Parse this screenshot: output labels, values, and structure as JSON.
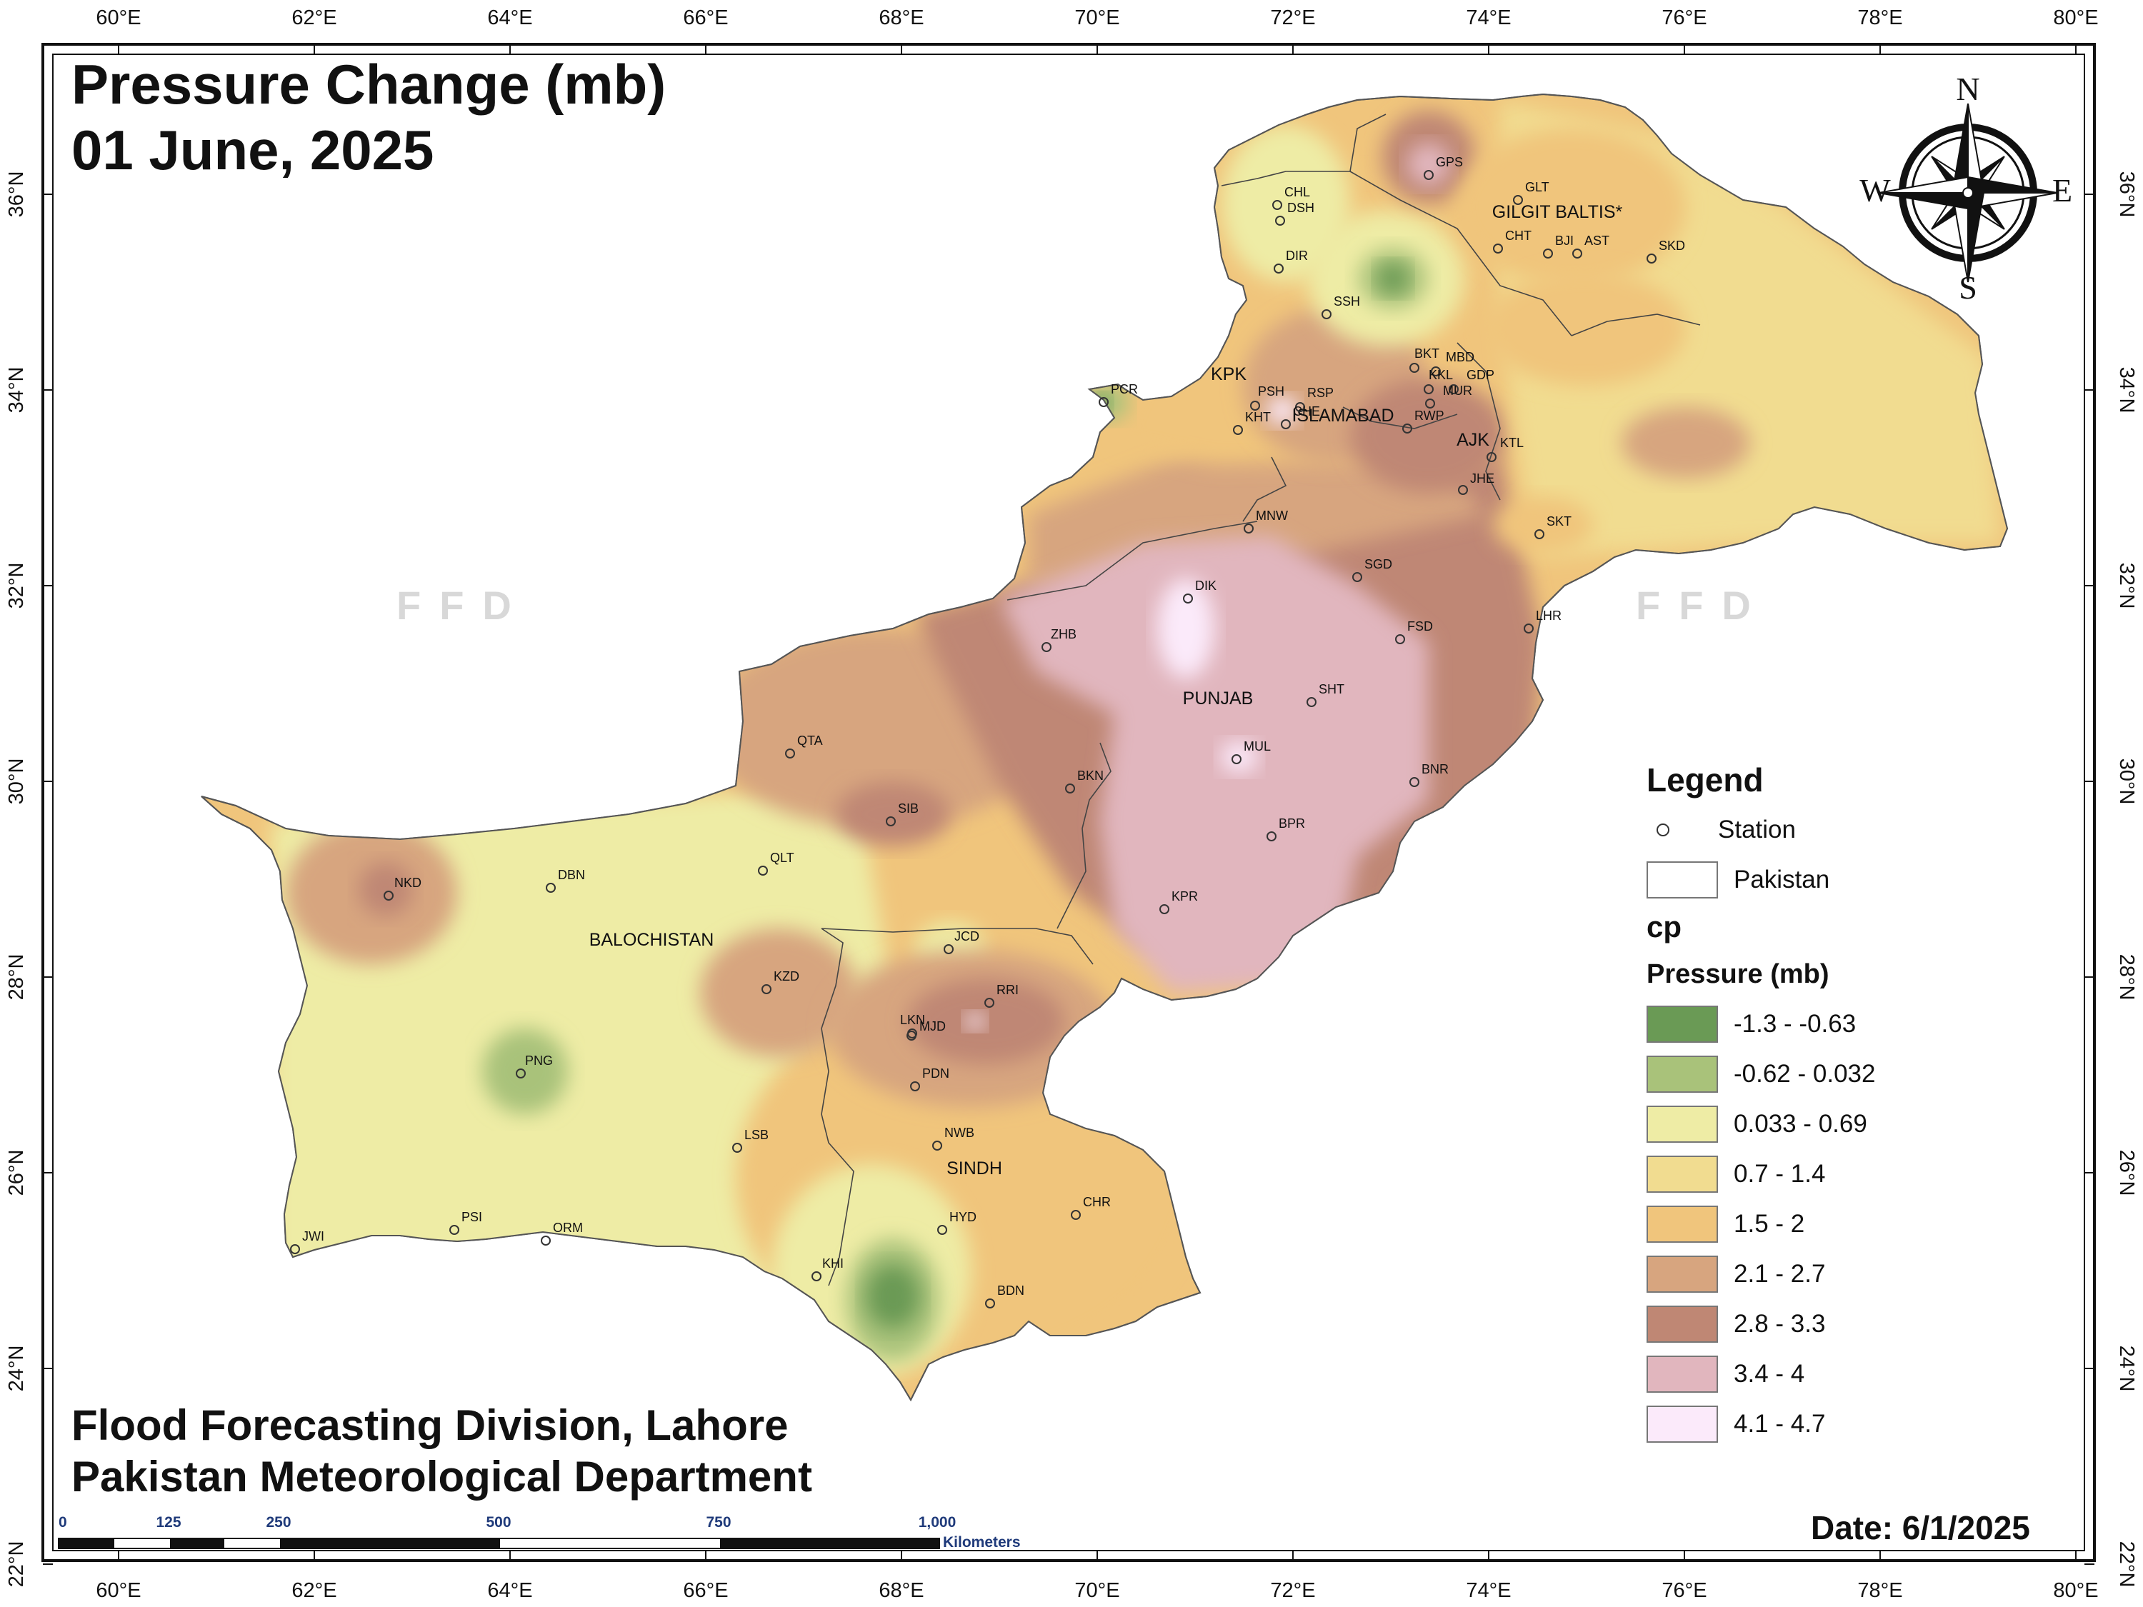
{
  "title": {
    "line1": "Pressure Change (mb)",
    "line2": "01 June, 2025"
  },
  "footer": {
    "line1": "Flood Forecasting Division, Lahore",
    "line2": "Pakistan Meteorological Department"
  },
  "date_label": "Date: 6/1/2025",
  "watermark": "FFD",
  "compass": {
    "n": "N",
    "s": "S",
    "e": "E",
    "w": "W"
  },
  "lon_ticks": [
    "60°E",
    "62°E",
    "64°E",
    "66°E",
    "68°E",
    "70°E",
    "72°E",
    "74°E",
    "76°E",
    "78°E",
    "80°E"
  ],
  "lat_ticks": [
    "36°N",
    "34°N",
    "32°N",
    "30°N",
    "28°N",
    "26°N",
    "24°N",
    "22°N"
  ],
  "legend": {
    "title": "Legend",
    "station_label": "Station",
    "pakistan_label": "Pakistan",
    "cp_label": "cp",
    "pressure_label": "Pressure (mb)",
    "classes": [
      {
        "label": "-1.3 - -0.63",
        "color": "#6a9a55"
      },
      {
        "label": "-0.62 - 0.032",
        "color": "#a9c27a"
      },
      {
        "label": "0.033 - 0.69",
        "color": "#eeeca5"
      },
      {
        "label": "0.7 - 1.4",
        "color": "#f1dc90"
      },
      {
        "label": "1.5 - 2",
        "color": "#f0c57c"
      },
      {
        "label": "2.1 - 2.7",
        "color": "#d7a57f"
      },
      {
        "label": "2.8 - 3.3",
        "color": "#bf8774"
      },
      {
        "label": "3.4 - 4",
        "color": "#e1b6be"
      },
      {
        "label": "4.1 - 4.7",
        "color": "#fbeafa"
      }
    ]
  },
  "regions": [
    "KPK",
    "ISLAMABAD",
    "GILGIT BALTIS*",
    "AJK",
    "PUNJAB",
    "BALOCHISTAN",
    "SINDH"
  ],
  "stations": [
    "GPS",
    "GLT",
    "CHL",
    "DSH",
    "CHT",
    "BJI",
    "AST",
    "SKD",
    "DIR",
    "SSH",
    "BKT",
    "MBD",
    "KKL",
    "GDP",
    "MUR",
    "PCR",
    "PSH",
    "RSP",
    "CHE",
    "KHT",
    "RWP",
    "KTL",
    "JHE",
    "SKT",
    "MNW",
    "SGD",
    "DIK",
    "ZHB",
    "LHR",
    "FSD",
    "SHT",
    "QTA",
    "MUL",
    "BKN",
    "BNR",
    "SIB",
    "BPR",
    "QLT",
    "NKD",
    "DBN",
    "KPR",
    "JCD",
    "KZD",
    "RRI",
    "LKN",
    "MJD",
    "PNG",
    "PDN",
    "NWB",
    "LSB",
    "CHR",
    "HYD",
    "PSI",
    "ORM",
    "JWI",
    "KHI",
    "BDN"
  ],
  "scale_bar": {
    "labels": [
      "0",
      "125",
      "250",
      "500",
      "750",
      "1,000"
    ],
    "unit": "Kilometers"
  }
}
